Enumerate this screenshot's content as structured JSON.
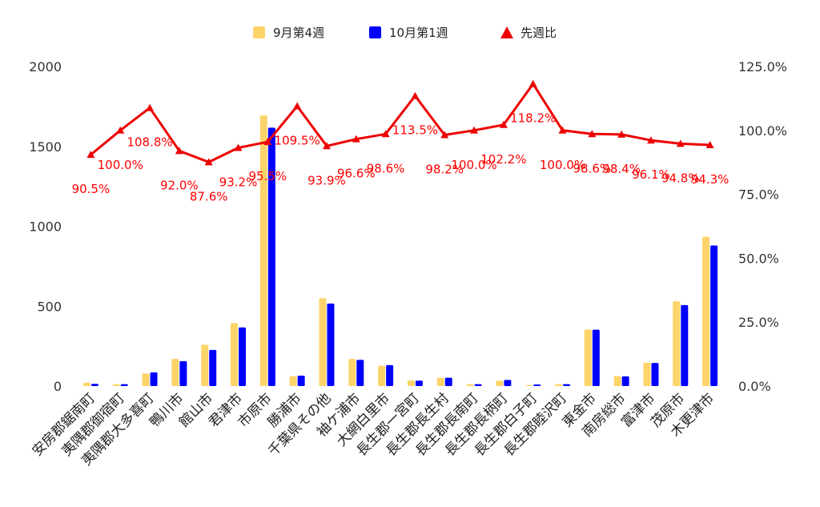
{
  "chart_data": {
    "type": "bar",
    "categories": [
      "安房郡鋸南町",
      "夷隅郡御宿町",
      "夷隅郡大多喜町",
      "鴨川市",
      "館山市",
      "君津市",
      "市原市",
      "勝浦市",
      "千葉県その他",
      "袖ケ浦市",
      "大網白里市",
      "長生郡一宮町",
      "長生郡長生村",
      "長生郡長南町",
      "長生郡長柄町",
      "長生郡白子町",
      "長生郡睦沢町",
      "東金市",
      "南房総市",
      "富津市",
      "茂原市",
      "木更津市"
    ],
    "series": [
      {
        "name": "9月第4週",
        "color": "#fdd46a",
        "axis": "left",
        "values": [
          21,
          12,
          79,
          170,
          258,
          394,
          1693,
          62,
          550,
          170,
          127,
          35,
          52,
          12,
          33,
          6,
          12,
          354,
          62,
          146,
          531,
          935
        ]
      },
      {
        "name": "10月第1週",
        "color": "#0000ff",
        "axis": "left",
        "values": [
          14,
          12,
          86,
          156,
          226,
          367,
          1617,
          65,
          516,
          164,
          131,
          34,
          52,
          12,
          38,
          10,
          12,
          353,
          61,
          145,
          507,
          880
        ]
      },
      {
        "name": "先週比",
        "color": "#ee0000",
        "axis": "right",
        "type": "line",
        "values": [
          90.5,
          100.0,
          108.8,
          92.0,
          87.6,
          93.2,
          95.5,
          109.5,
          93.9,
          96.6,
          98.6,
          113.5,
          98.2,
          100.0,
          102.2,
          118.2,
          100.0,
          98.6,
          98.4,
          96.1,
          94.8,
          94.3
        ],
        "labels": [
          "90.5%",
          "100.0%",
          "108.8%",
          "92.0%",
          "87.6%",
          "93.2%",
          "95.5%",
          "109.5%",
          "93.9%",
          "96.6%",
          "98.6%",
          "113.5%",
          "98.2%",
          "100.0%",
          "102.2%",
          "118.2%",
          "100.0%",
          "98.6%",
          "98.4%",
          "96.1%",
          "94.8%",
          "94.3%"
        ]
      }
    ],
    "ylim": [
      0,
      2000
    ],
    "yticks": [
      0,
      500,
      1000,
      1500,
      2000
    ],
    "y2lim": [
      0,
      125
    ],
    "y2ticks": [
      "0.0%",
      "25.0%",
      "50.0%",
      "75.0%",
      "100.0%",
      "125.0%"
    ],
    "legend": "top",
    "grid": false
  }
}
